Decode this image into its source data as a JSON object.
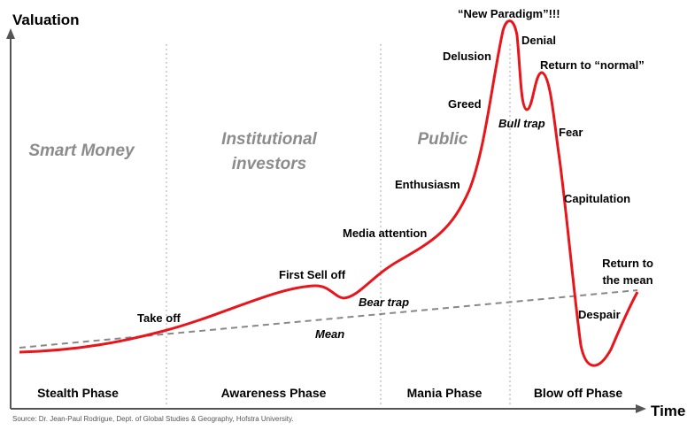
{
  "axes": {
    "y_label": "Valuation",
    "x_label": "Time"
  },
  "audiences": {
    "smart_money": "Smart Money",
    "institutional": [
      "Institutional",
      "investors"
    ],
    "public": "Public"
  },
  "phases": [
    "Stealth Phase",
    "Awareness Phase",
    "Mania Phase",
    "Blow off Phase"
  ],
  "annotations": {
    "take_off": "Take off",
    "first_sell_off": "First Sell off",
    "bear_trap": "Bear trap",
    "mean": "Mean",
    "media_attention": "Media attention",
    "enthusiasm": "Enthusiasm",
    "greed": "Greed",
    "delusion": "Delusion",
    "new_paradigm": "“New Paradigm”!!!",
    "denial": "Denial",
    "bull_trap": "Bull trap",
    "return_to_normal": "Return to “normal”",
    "fear": "Fear",
    "capitulation": "Capitulation",
    "despair": "Despair",
    "return_to_mean": [
      "Return to",
      "the mean"
    ]
  },
  "source": "Source: Dr. Jean-Paul Rodrigue, Dept. of Global Studies & Geography, Hofstra University."
}
